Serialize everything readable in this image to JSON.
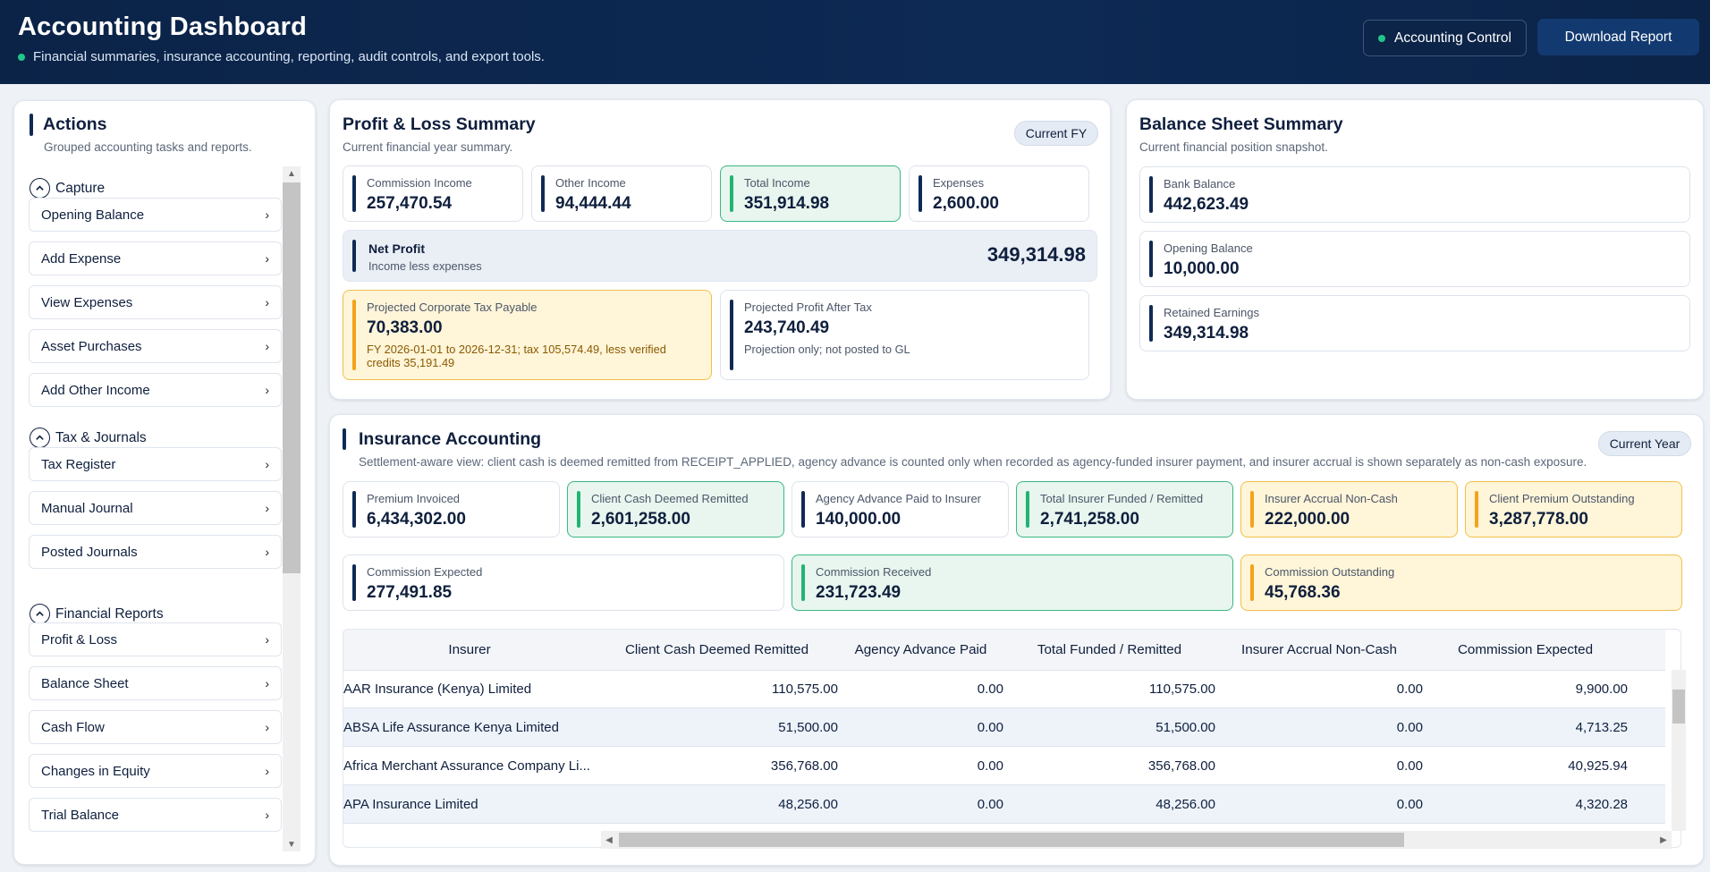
{
  "header": {
    "title": "Accounting Dashboard",
    "subtitle": "Financial summaries, insurance accounting, reporting, audit controls, and export tools.",
    "control_label": "Accounting Control",
    "download_label": "Download Report"
  },
  "sidebar": {
    "title": "Actions",
    "subtitle": "Grouped accounting tasks and reports.",
    "groups": [
      {
        "label": "Capture",
        "items": [
          "Opening Balance",
          "Add Expense",
          "View Expenses",
          "Asset Purchases",
          "Add Other Income"
        ]
      },
      {
        "label": "Tax & Journals",
        "items": [
          "Tax Register",
          "Manual Journal",
          "Posted Journals"
        ]
      },
      {
        "label": "Financial Reports",
        "items": [
          "Profit & Loss",
          "Balance Sheet",
          "Cash Flow",
          "Changes in Equity",
          "Trial Balance"
        ]
      }
    ]
  },
  "pnl": {
    "title": "Profit & Loss Summary",
    "subtitle": "Current financial year summary.",
    "badge": "Current FY",
    "commission_income": {
      "label": "Commission Income",
      "value": "257,470.54"
    },
    "other_income": {
      "label": "Other Income",
      "value": "94,444.44"
    },
    "total_income": {
      "label": "Total Income",
      "value": "351,914.98"
    },
    "expenses": {
      "label": "Expenses",
      "value": "2,600.00"
    },
    "net_profit": {
      "label": "Net Profit",
      "sub": "Income less expenses",
      "value": "349,314.98"
    },
    "tax_payable": {
      "label": "Projected Corporate Tax Payable",
      "value": "70,383.00",
      "note": "FY 2026-01-01 to 2026-12-31; tax 105,574.49, less verified credits 35,191.49"
    },
    "profit_after_tax": {
      "label": "Projected Profit After Tax",
      "value": "243,740.49",
      "note": "Projection only; not posted to GL"
    }
  },
  "balance": {
    "title": "Balance Sheet Summary",
    "subtitle": "Current financial position snapshot.",
    "bank": {
      "label": "Bank Balance",
      "value": "442,623.49"
    },
    "opening": {
      "label": "Opening Balance",
      "value": "10,000.00"
    },
    "retained": {
      "label": "Retained Earnings",
      "value": "349,314.98"
    }
  },
  "insurance": {
    "title": "Insurance Accounting",
    "subtitle": "Settlement-aware view: client cash is deemed remitted from RECEIPT_APPLIED, agency advance is counted only when recorded as agency-funded insurer payment, and insurer accrual is shown separately as non-cash exposure.",
    "badge": "Current Year",
    "premium_invoiced": {
      "label": "Premium Invoiced",
      "value": "6,434,302.00"
    },
    "client_cash": {
      "label": "Client Cash Deemed Remitted",
      "value": "2,601,258.00"
    },
    "agency_advance": {
      "label": "Agency Advance Paid to Insurer",
      "value": "140,000.00"
    },
    "total_funded": {
      "label": "Total Insurer Funded / Remitted",
      "value": "2,741,258.00"
    },
    "accrual": {
      "label": "Insurer Accrual Non-Cash",
      "value": "222,000.00"
    },
    "premium_outstanding": {
      "label": "Client Premium Outstanding",
      "value": "3,287,778.00"
    },
    "commission_expected": {
      "label": "Commission Expected",
      "value": "277,491.85"
    },
    "commission_received": {
      "label": "Commission Received",
      "value": "231,723.49"
    },
    "commission_outstanding": {
      "label": "Commission Outstanding",
      "value": "45,768.36"
    },
    "table": {
      "columns": [
        "Insurer",
        "Client Cash Deemed Remitted",
        "Agency Advance Paid",
        "Total Funded / Remitted",
        "Insurer Accrual Non-Cash",
        "Commission Expected"
      ],
      "rows": [
        [
          "AAR Insurance (Kenya) Limited",
          "110,575.00",
          "0.00",
          "110,575.00",
          "0.00",
          "9,900.00"
        ],
        [
          "ABSA Life Assurance Kenya Limited",
          "51,500.00",
          "0.00",
          "51,500.00",
          "0.00",
          "4,713.25"
        ],
        [
          "Africa Merchant Assurance Company Li...",
          "356,768.00",
          "0.00",
          "356,768.00",
          "0.00",
          "40,925.94"
        ],
        [
          "APA Insurance Limited",
          "48,256.00",
          "0.00",
          "48,256.00",
          "0.00",
          "4,320.28"
        ]
      ]
    }
  }
}
